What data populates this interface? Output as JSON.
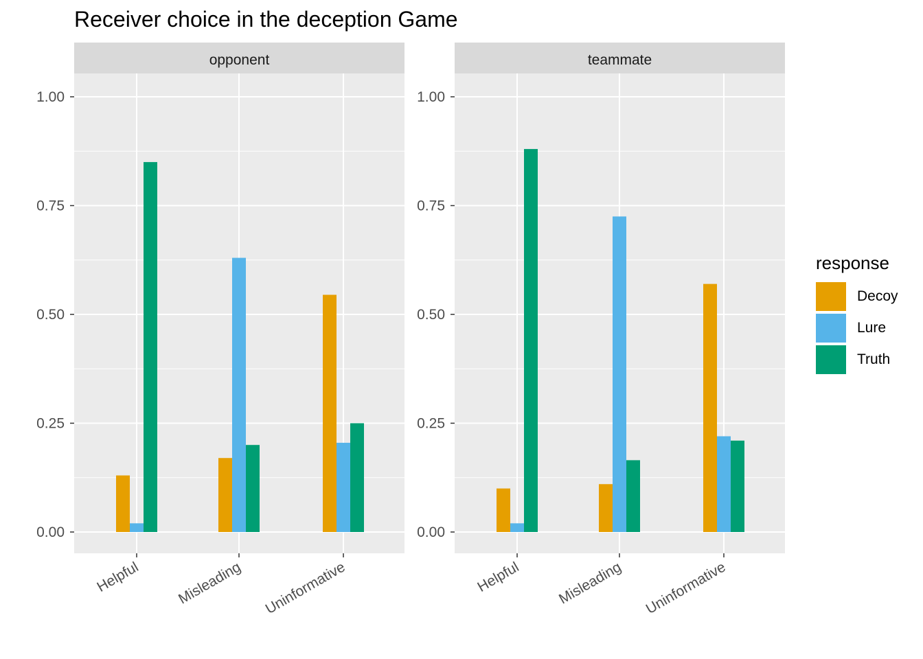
{
  "chart_data": {
    "type": "bar",
    "title": "Receiver choice in the deception Game",
    "categories": [
      "Helpful",
      "Misleading",
      "Uninformative"
    ],
    "ylim": [
      -0.05,
      1.05
    ],
    "yticks": [
      "0.00",
      "0.25",
      "0.50",
      "0.75",
      "1.00"
    ],
    "ytick_values": [
      0,
      0.25,
      0.5,
      0.75,
      1.0
    ],
    "grid": true,
    "legend": {
      "title": "response",
      "position": "right",
      "entries": [
        "Decoy",
        "Lure",
        "Truth"
      ]
    },
    "colors": {
      "Decoy": "#E69F00",
      "Lure": "#56B4E9",
      "Truth": "#009E73"
    },
    "panels": [
      {
        "label": "opponent",
        "series": [
          {
            "name": "Decoy",
            "values": [
              0.13,
              0.17,
              0.545
            ]
          },
          {
            "name": "Lure",
            "values": [
              0.02,
              0.63,
              0.205
            ]
          },
          {
            "name": "Truth",
            "values": [
              0.85,
              0.2,
              0.25
            ]
          }
        ]
      },
      {
        "label": "teammate",
        "series": [
          {
            "name": "Decoy",
            "values": [
              0.1,
              0.11,
              0.57
            ]
          },
          {
            "name": "Lure",
            "values": [
              0.02,
              0.725,
              0.22
            ]
          },
          {
            "name": "Truth",
            "values": [
              0.88,
              0.165,
              0.21
            ]
          }
        ]
      }
    ]
  }
}
